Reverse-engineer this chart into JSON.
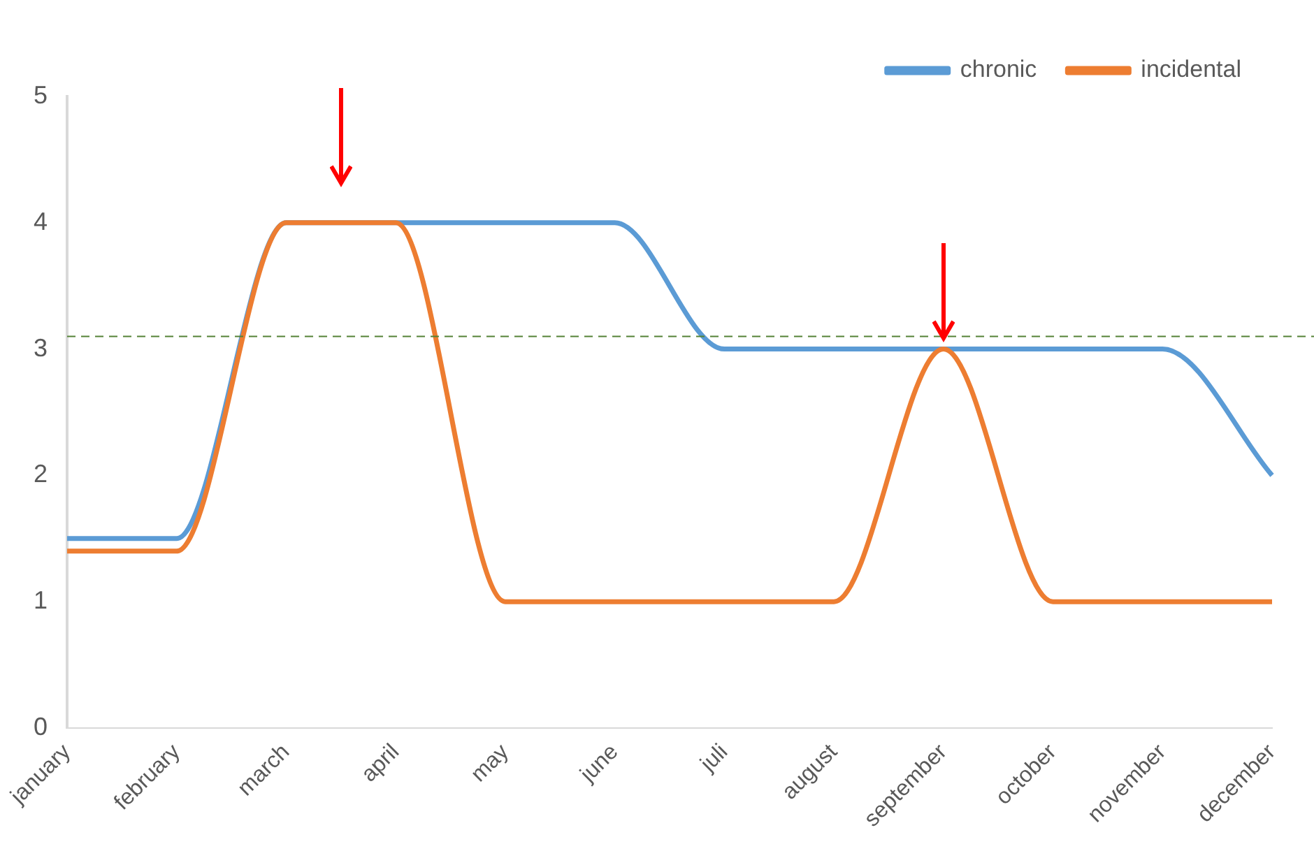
{
  "chart_data": {
    "type": "line",
    "categories": [
      "january",
      "february",
      "march",
      "april",
      "may",
      "june",
      "juli",
      "august",
      "september",
      "october",
      "november",
      "december"
    ],
    "series": [
      {
        "name": "chronic",
        "color": "#5b9bd5",
        "values": [
          1.5,
          1.5,
          4,
          4,
          4,
          4,
          3,
          3,
          3,
          3,
          3,
          2
        ]
      },
      {
        "name": "incidental",
        "color": "#ed7d31",
        "values": [
          1.4,
          1.4,
          4,
          4,
          1,
          1,
          1,
          1,
          3,
          1,
          1,
          1
        ]
      }
    ],
    "ylim": [
      0,
      5
    ],
    "yticks": [
      0,
      1,
      2,
      3,
      4,
      5
    ],
    "grid": false,
    "legend": "top right",
    "marker": "none",
    "line_style": "solid",
    "ref_lines": [
      {
        "axis": "y",
        "value": 3.1,
        "color": "#548235",
        "line_style": "dashed"
      }
    ]
  }
}
